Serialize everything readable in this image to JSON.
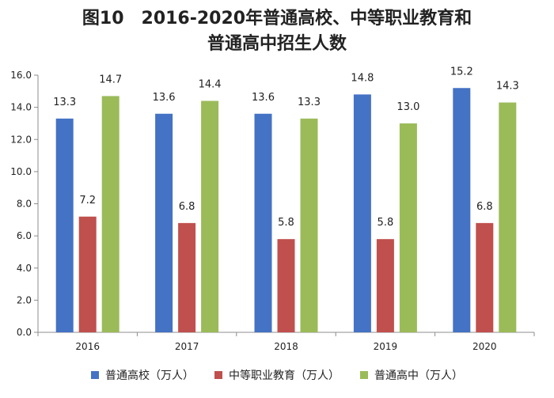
{
  "chart_data": {
    "type": "bar",
    "title_line1": "图10　2016-2020年普通高校、中等职业教育和",
    "title_line2": "普通高中招生人数",
    "categories": [
      "2016",
      "2017",
      "2018",
      "2019",
      "2020"
    ],
    "series": [
      {
        "name": "普通高校（万人）",
        "color": "#4472C4",
        "values": [
          13.3,
          13.6,
          13.6,
          14.8,
          15.2
        ],
        "labels": [
          "13.3",
          "13.6",
          "13.6",
          "14.8",
          "15.2"
        ]
      },
      {
        "name": "中等职业教育（万人）",
        "color": "#C0504D",
        "values": [
          7.2,
          6.8,
          5.8,
          5.8,
          6.8
        ],
        "labels": [
          "7.2",
          "6.8",
          "5.8",
          "5.8",
          "6.8"
        ]
      },
      {
        "name": "普通高中（万人）",
        "color": "#9BBB59",
        "values": [
          14.7,
          14.4,
          13.3,
          13.0,
          14.3
        ],
        "labels": [
          "14.7",
          "14.4",
          "13.3",
          "13.0",
          "14.3"
        ]
      }
    ],
    "ylim": [
      0,
      16
    ],
    "yticks": [
      "0.0",
      "2.0",
      "4.0",
      "6.0",
      "8.0",
      "10.0",
      "12.0",
      "14.0",
      "16.0"
    ],
    "ytick_values": [
      0,
      2,
      4,
      6,
      8,
      10,
      12,
      14,
      16
    ],
    "legend_position": "bottom",
    "grid": false
  }
}
